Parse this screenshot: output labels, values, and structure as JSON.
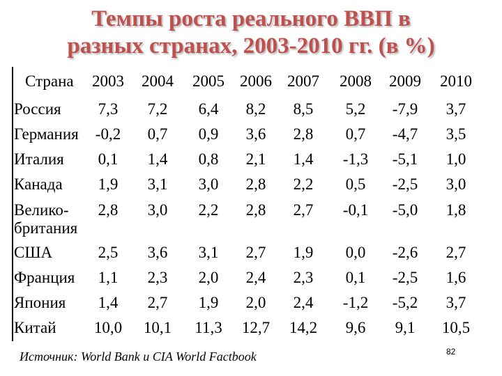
{
  "title": {
    "line1": "Темпы роста реального ВВП в",
    "line2": "разных странах, 2003-2010 гг. (в %)"
  },
  "table": {
    "country_header": "Страна",
    "years": [
      "2003",
      "2004",
      "2005",
      "2006",
      "2007",
      "2008",
      "2009",
      "2010"
    ],
    "rows": [
      {
        "country": [
          "Россия"
        ],
        "values": [
          "7,3",
          "7,2",
          "6,4",
          "8,2",
          "8,5",
          "5,2",
          "-7,9",
          "3,7"
        ]
      },
      {
        "country": [
          "Германия"
        ],
        "values": [
          "-0,2",
          "0,7",
          "0,9",
          "3,6",
          "2,8",
          "0,7",
          "-4,7",
          "3,5"
        ]
      },
      {
        "country": [
          "Италия"
        ],
        "values": [
          "0,1",
          "1,4",
          "0,8",
          "2,1",
          "1,4",
          "-1,3",
          "-5,1",
          "1,0"
        ]
      },
      {
        "country": [
          "Канада"
        ],
        "values": [
          "1,9",
          "3,1",
          "3,0",
          "2,8",
          "2,2",
          "0,5",
          "-2,5",
          "3,0"
        ]
      },
      {
        "country": [
          "Велико-",
          "британия"
        ],
        "values": [
          "2,8",
          "3,0",
          "2,2",
          "2,8",
          "2,7",
          "-0,1",
          "-5,0",
          "1,8"
        ]
      },
      {
        "country": [
          "США"
        ],
        "values": [
          "2,5",
          "3,6",
          "3,1",
          "2,7",
          "1,9",
          "0,0",
          "-2,6",
          "2,7"
        ]
      },
      {
        "country": [
          "Франция"
        ],
        "values": [
          "1,1",
          "2,3",
          "2,0",
          "2,4",
          "2,3",
          "0,1",
          "-2,5",
          "1,6"
        ]
      },
      {
        "country": [
          "Япония"
        ],
        "values": [
          "1,4",
          "2,7",
          "1,9",
          "2,0",
          "2,4",
          "-1,2",
          "-5,2",
          "3,7"
        ]
      },
      {
        "country": [
          "Китай"
        ],
        "values": [
          "10,0",
          "10,1",
          "11,3",
          "12,7",
          "14,2",
          "9,6",
          "9,1",
          "10,5"
        ]
      }
    ]
  },
  "footer": {
    "source": "Источник: World Bank и CIA World Factbook",
    "page_number": "82"
  }
}
